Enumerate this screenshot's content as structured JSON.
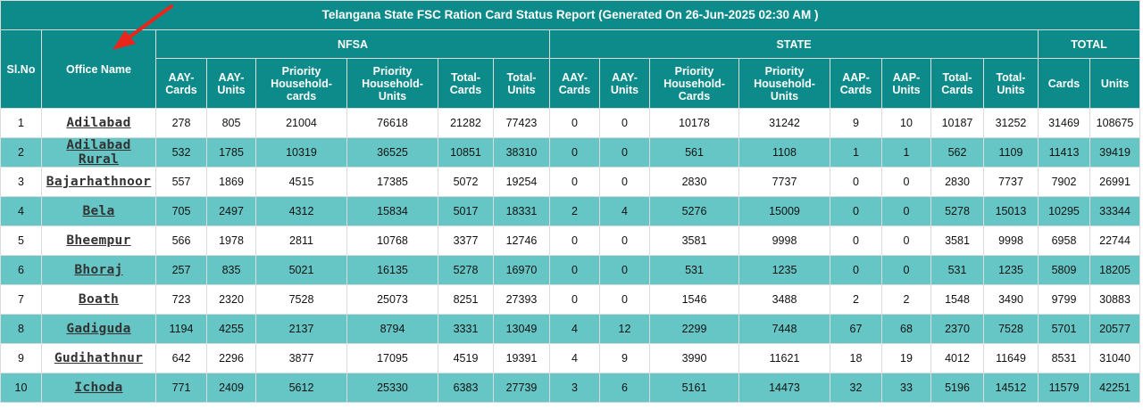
{
  "report": {
    "title": "Telangana State FSC Ration Card Status Report (Generated On 26-Jun-2025 02:30 AM )",
    "headers": {
      "sl_no": "Sl.No",
      "office_name": "Office Name",
      "nfsa": "NFSA",
      "state": "STATE",
      "total": "TOTAL"
    },
    "nfsa_columns": [
      "AAY-Cards",
      "AAY-Units",
      "Priority Household-cards",
      "Priority Household-Units",
      "Total-Cards",
      "Total-Units"
    ],
    "state_columns": [
      "AAY-Cards",
      "AAY-Units",
      "Priority Household-Cards",
      "Priority Household-Units",
      "AAP-Cards",
      "AAP-Units",
      "Total-Cards",
      "Total-Units"
    ],
    "total_columns": [
      "Cards",
      "Units"
    ],
    "rows": [
      {
        "sl": "1",
        "office": "Adilabad",
        "nfsa": [
          "278",
          "805",
          "21004",
          "76618",
          "21282",
          "77423"
        ],
        "state": [
          "0",
          "0",
          "10178",
          "31242",
          "9",
          "10",
          "10187",
          "31252"
        ],
        "total": [
          "31469",
          "108675"
        ]
      },
      {
        "sl": "2",
        "office": "Adilabad Rural",
        "nfsa": [
          "532",
          "1785",
          "10319",
          "36525",
          "10851",
          "38310"
        ],
        "state": [
          "0",
          "0",
          "561",
          "1108",
          "1",
          "1",
          "562",
          "1109"
        ],
        "total": [
          "11413",
          "39419"
        ]
      },
      {
        "sl": "3",
        "office": "Bajarhathnoor",
        "nfsa": [
          "557",
          "1869",
          "4515",
          "17385",
          "5072",
          "19254"
        ],
        "state": [
          "0",
          "0",
          "2830",
          "7737",
          "0",
          "0",
          "2830",
          "7737"
        ],
        "total": [
          "7902",
          "26991"
        ]
      },
      {
        "sl": "4",
        "office": "Bela",
        "nfsa": [
          "705",
          "2497",
          "4312",
          "15834",
          "5017",
          "18331"
        ],
        "state": [
          "2",
          "4",
          "5276",
          "15009",
          "0",
          "0",
          "5278",
          "15013"
        ],
        "total": [
          "10295",
          "33344"
        ]
      },
      {
        "sl": "5",
        "office": "Bheempur",
        "nfsa": [
          "566",
          "1978",
          "2811",
          "10768",
          "3377",
          "12746"
        ],
        "state": [
          "0",
          "0",
          "3581",
          "9998",
          "0",
          "0",
          "3581",
          "9998"
        ],
        "total": [
          "6958",
          "22744"
        ]
      },
      {
        "sl": "6",
        "office": "Bhoraj",
        "nfsa": [
          "257",
          "835",
          "5021",
          "16135",
          "5278",
          "16970"
        ],
        "state": [
          "0",
          "0",
          "531",
          "1235",
          "0",
          "0",
          "531",
          "1235"
        ],
        "total": [
          "5809",
          "18205"
        ]
      },
      {
        "sl": "7",
        "office": "Boath",
        "nfsa": [
          "723",
          "2320",
          "7528",
          "25073",
          "8251",
          "27393"
        ],
        "state": [
          "0",
          "0",
          "1546",
          "3488",
          "2",
          "2",
          "1548",
          "3490"
        ],
        "total": [
          "9799",
          "30883"
        ]
      },
      {
        "sl": "8",
        "office": "Gadiguda",
        "nfsa": [
          "1194",
          "4255",
          "2137",
          "8794",
          "3331",
          "13049"
        ],
        "state": [
          "4",
          "12",
          "2299",
          "7448",
          "67",
          "68",
          "2370",
          "7528"
        ],
        "total": [
          "5701",
          "20577"
        ]
      },
      {
        "sl": "9",
        "office": "Gudihathnur",
        "nfsa": [
          "642",
          "2296",
          "3877",
          "17095",
          "4519",
          "19391"
        ],
        "state": [
          "4",
          "9",
          "3990",
          "11621",
          "18",
          "19",
          "4012",
          "11649"
        ],
        "total": [
          "8531",
          "31040"
        ]
      },
      {
        "sl": "10",
        "office": "Ichoda",
        "nfsa": [
          "771",
          "2409",
          "5612",
          "25330",
          "6383",
          "27739"
        ],
        "state": [
          "3",
          "6",
          "5161",
          "14473",
          "32",
          "33",
          "5196",
          "14512"
        ],
        "total": [
          "11579",
          "42251"
        ]
      }
    ]
  },
  "colors": {
    "header_bg": "#0d8a8a",
    "row_alt_bg": "#66c6c6",
    "annotation_arrow": "#e8261c"
  }
}
